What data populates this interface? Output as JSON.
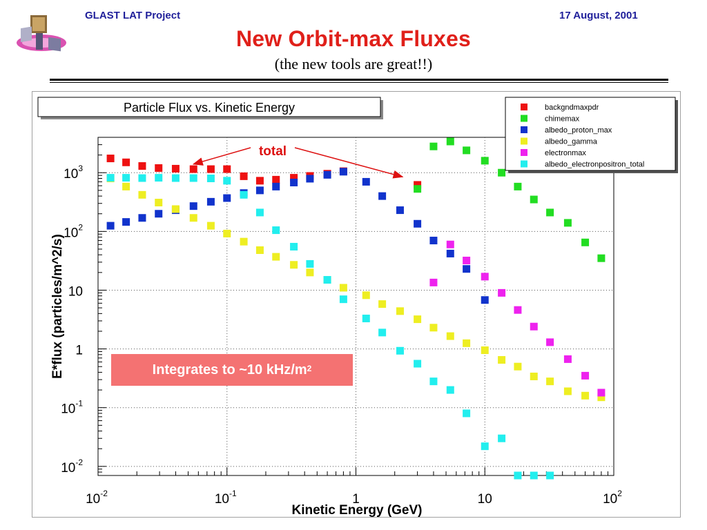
{
  "header": {
    "project": "GLAST LAT Project",
    "date": "17 August, 2001",
    "title": "New Orbit-max Fluxes",
    "subtitle": "(the new tools are great!!)"
  },
  "colors": {
    "title": "#e0201a",
    "header_text": "#1f1f9a",
    "callout_bg": "#f47272"
  },
  "icons": {
    "logo": "glast-satellite-logo-icon"
  },
  "callout": {
    "text": "Integrates to ~10 kHz/m",
    "superscript": "2"
  },
  "chart_data": {
    "type": "scatter",
    "title": "Particle Flux vs. Kinetic Energy",
    "xlabel": "Kinetic Energy (GeV)",
    "ylabel": "E*flux (particles/m^2/s)",
    "xscale": "log",
    "yscale": "log",
    "xlim": [
      0.01,
      100
    ],
    "ylim": [
      0.007,
      4000
    ],
    "grid": true,
    "legend_position": "top-right",
    "x_ticks": [
      {
        "value": 0.01,
        "base": "10",
        "exp": "-2"
      },
      {
        "value": 0.1,
        "base": "10",
        "exp": "-1"
      },
      {
        "value": 1,
        "base": "1",
        "exp": ""
      },
      {
        "value": 10,
        "base": "10",
        "exp": ""
      },
      {
        "value": 100,
        "base": "10",
        "exp": "2"
      }
    ],
    "y_ticks": [
      {
        "value": 0.01,
        "base": "10",
        "exp": "-2"
      },
      {
        "value": 0.1,
        "base": "10",
        "exp": "-1"
      },
      {
        "value": 1,
        "base": "1",
        "exp": ""
      },
      {
        "value": 10,
        "base": "10",
        "exp": ""
      },
      {
        "value": 100,
        "base": "10",
        "exp": "2"
      },
      {
        "value": 1000,
        "base": "10",
        "exp": "3"
      }
    ],
    "annotation": {
      "text": "total",
      "arrow_targets": [
        [
          0.055,
          1400
        ],
        [
          2.3,
          850
        ]
      ]
    },
    "series": [
      {
        "name": "backgndmaxpdr",
        "color": "#ee1111",
        "x": [
          0.0125,
          0.0165,
          0.022,
          0.0295,
          0.04,
          0.055,
          0.075,
          0.1,
          0.135,
          0.18,
          0.24,
          0.33,
          0.44,
          0.6,
          0.8,
          3.0
        ],
        "y": [
          1750,
          1500,
          1300,
          1200,
          1170,
          1150,
          1150,
          1150,
          870,
          730,
          760,
          820,
          880,
          960,
          1060,
          620
        ]
      },
      {
        "name": "chimemax",
        "color": "#22dd22",
        "x": [
          3.0,
          4.0,
          5.4,
          7.2,
          10,
          13.5,
          18,
          24,
          32,
          44,
          60,
          80
        ],
        "y": [
          530,
          2800,
          3400,
          2400,
          1600,
          1000,
          580,
          350,
          210,
          140,
          65,
          35
        ]
      },
      {
        "name": "albedo_proton_max",
        "color": "#1133cc",
        "x": [
          0.0125,
          0.0165,
          0.022,
          0.0295,
          0.04,
          0.055,
          0.075,
          0.1,
          0.135,
          0.18,
          0.24,
          0.33,
          0.44,
          0.6,
          0.8,
          1.2,
          1.6,
          2.2,
          3.0,
          4.0,
          5.4,
          7.2,
          10
        ],
        "y": [
          125,
          145,
          170,
          200,
          230,
          270,
          320,
          370,
          450,
          500,
          580,
          680,
          790,
          920,
          1040,
          700,
          400,
          230,
          135,
          70,
          42,
          23,
          6.8
        ]
      },
      {
        "name": "albedo_gamma",
        "color": "#eeee22",
        "x": [
          0.0125,
          0.0165,
          0.022,
          0.0295,
          0.04,
          0.055,
          0.075,
          0.1,
          0.135,
          0.18,
          0.24,
          0.33,
          0.44,
          0.6,
          0.8,
          1.2,
          1.6,
          2.2,
          3.0,
          4.0,
          5.4,
          7.2,
          10,
          13.5,
          18,
          24,
          32,
          44,
          60,
          80
        ],
        "y": [
          800,
          580,
          420,
          310,
          240,
          170,
          125,
          92,
          67,
          48,
          37,
          27,
          20,
          15,
          11,
          8.2,
          5.8,
          4.4,
          3.2,
          2.3,
          1.65,
          1.25,
          0.95,
          0.65,
          0.5,
          0.34,
          0.28,
          0.19,
          0.16,
          0.15
        ]
      },
      {
        "name": "electronmax",
        "color": "#ee22ee",
        "x": [
          4.0,
          5.4,
          7.2,
          10,
          13.5,
          18,
          24,
          32,
          44,
          60,
          80
        ],
        "y": [
          13.5,
          60,
          32,
          17,
          9,
          4.6,
          2.4,
          1.3,
          0.67,
          0.35,
          0.18
        ]
      },
      {
        "name": "albedo_electronpositron_total",
        "color": "#22eeee",
        "x": [
          0.0125,
          0.0165,
          0.022,
          0.0295,
          0.04,
          0.055,
          0.075,
          0.1,
          0.135,
          0.18,
          0.24,
          0.33,
          0.44,
          0.6,
          0.8,
          1.2,
          1.6,
          2.2,
          3.0,
          4.0,
          5.4,
          7.2,
          10,
          13.5,
          18,
          24,
          32
        ],
        "y": [
          820,
          820,
          810,
          820,
          810,
          810,
          800,
          730,
          420,
          210,
          105,
          55,
          28,
          15,
          7,
          3.3,
          1.9,
          0.93,
          0.56,
          0.28,
          0.2,
          0.08,
          0.022,
          0.03,
          0.007,
          0.007,
          0.007
        ]
      }
    ]
  }
}
